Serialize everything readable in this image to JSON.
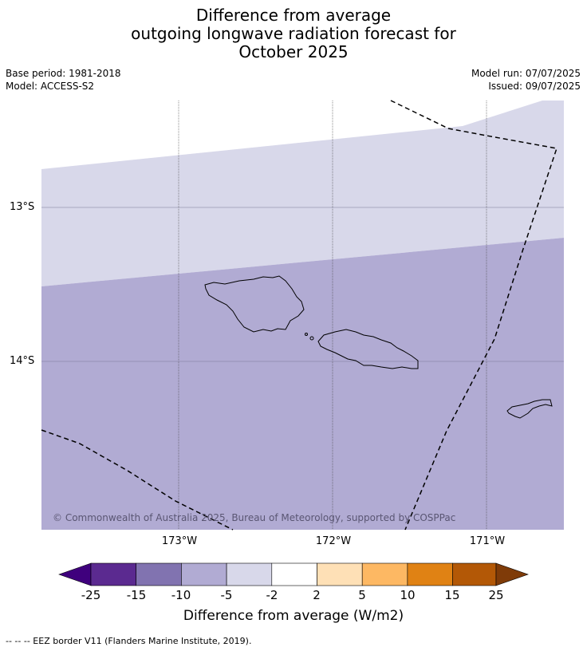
{
  "title": {
    "line1": "Difference from average",
    "line2": "outgoing longwave radiation forecast for",
    "line3": "October 2025"
  },
  "meta": {
    "base_period": "Base period: 1981-2018",
    "model": "Model: ACCESS-S2",
    "model_run": "Model run: 07/07/2025",
    "issued": "Issued: 09/07/2025"
  },
  "map": {
    "lat_labels": [
      "13°S",
      "14°S"
    ],
    "lon_labels": [
      "173°W",
      "172°W",
      "171°W"
    ],
    "copyright": "© Commonwealth of Australia 2025, Bureau of Meteorology, supported by COSPPac",
    "colors": {
      "light_band": "#d8d8ea",
      "mid_band": "#b1abd3"
    }
  },
  "colorbar": {
    "tick_labels": [
      "-25",
      "-15",
      "-10",
      "-5",
      "-2",
      "2",
      "5",
      "10",
      "15",
      "25"
    ],
    "colors": [
      "#3f007d",
      "#5b2a90",
      "#8173b0",
      "#b1abd3",
      "#d8d8ea",
      "#ffffff",
      "#fee0b6",
      "#fdb863",
      "#e08214",
      "#b35806",
      "#7f3b08"
    ],
    "title": "Difference from average (W/m2)"
  },
  "legend_note": "--  --  -- EEZ border V11 (Flanders Marine Institute, 2019)."
}
